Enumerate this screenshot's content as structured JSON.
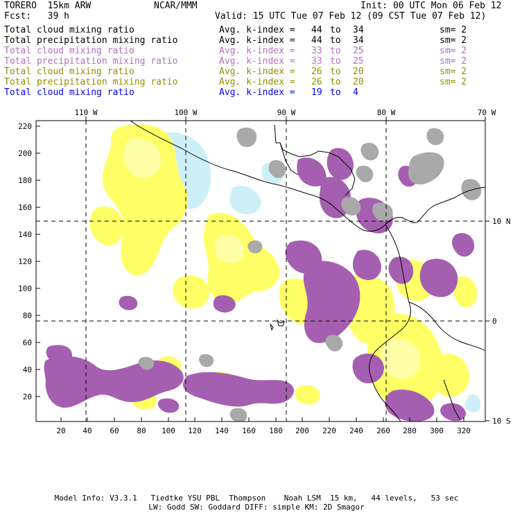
{
  "header": {
    "model": "TORERO  15km ARW",
    "org": "NCAR/MMM",
    "init": "Init: 00 UTC Mon 06 Feb 12",
    "fcst": "Fcst:   39 h",
    "valid": "Valid: 15 UTC Tue 07 Feb 12 (09 CST Tue 07 Feb 12)"
  },
  "legend": [
    {
      "name": "Total cloud mixing ratio",
      "index_label": "Avg. k-index =",
      "from": "44",
      "to_word": "to",
      "to": "34",
      "sm": "sm= 2",
      "color": "#000000"
    },
    {
      "name": "Total precipitation mixing ratio",
      "index_label": "Avg. k-index =",
      "from": "44",
      "to_word": "to",
      "to": "34",
      "sm": "sm= 2",
      "color": "#000000"
    },
    {
      "name": "Total cloud mixing ratio",
      "index_label": "Avg. k-index =",
      "from": "33",
      "to_word": "to",
      "to": "25",
      "sm": "sm= 2",
      "color": "#b070c0"
    },
    {
      "name": "Total precipitation mixing ratio",
      "index_label": "Avg. k-index =",
      "from": "33",
      "to_word": "to",
      "to": "25",
      "sm": "sm= 2",
      "color": "#b070c0"
    },
    {
      "name": "Total cloud mixing ratio",
      "index_label": "Avg. k-index =",
      "from": "26",
      "to_word": "to",
      "to": "20",
      "sm": "sm= 2",
      "color": "#909000"
    },
    {
      "name": "Total precipitation mixing ratio",
      "index_label": "Avg. k-index =",
      "from": "26",
      "to_word": "to",
      "to": "20",
      "sm": "sm= 2",
      "color": "#909000"
    },
    {
      "name": "Total cloud mixing ratio",
      "index_label": "Avg. k-index =",
      "from": "19",
      "to_word": "to",
      "to": "4",
      "sm": "",
      "color": "#0000ff"
    }
  ],
  "map": {
    "x_ticks": [
      "20",
      "40",
      "60",
      "80",
      "100",
      "120",
      "140",
      "160",
      "180",
      "200",
      "220",
      "240",
      "260",
      "280",
      "300",
      "320"
    ],
    "y_ticks": [
      "20",
      "40",
      "60",
      "80",
      "100",
      "120",
      "140",
      "160",
      "180",
      "200",
      "220"
    ],
    "lon_labels": [
      "110 W",
      "100 W",
      "90 W",
      "80 W",
      "70 W"
    ],
    "lat_labels": [
      "10 N",
      "0",
      "10 S"
    ],
    "colors": {
      "gray": "#a9a9a9",
      "purple": "#a55fb0",
      "yellow": "#ffff66",
      "lightyellow": "#ffff9a",
      "cyan": "#cdeff7",
      "coast": "#000000"
    }
  },
  "footer": {
    "line1": "Model Info: V3.3.1   Tiedtke YSU PBL  Thompson    Noah LSM  15 km,   44 levels,   53 sec",
    "line2": "LW: Godd SW: Goddard DIFF: simple KM: 2D Smagor"
  }
}
